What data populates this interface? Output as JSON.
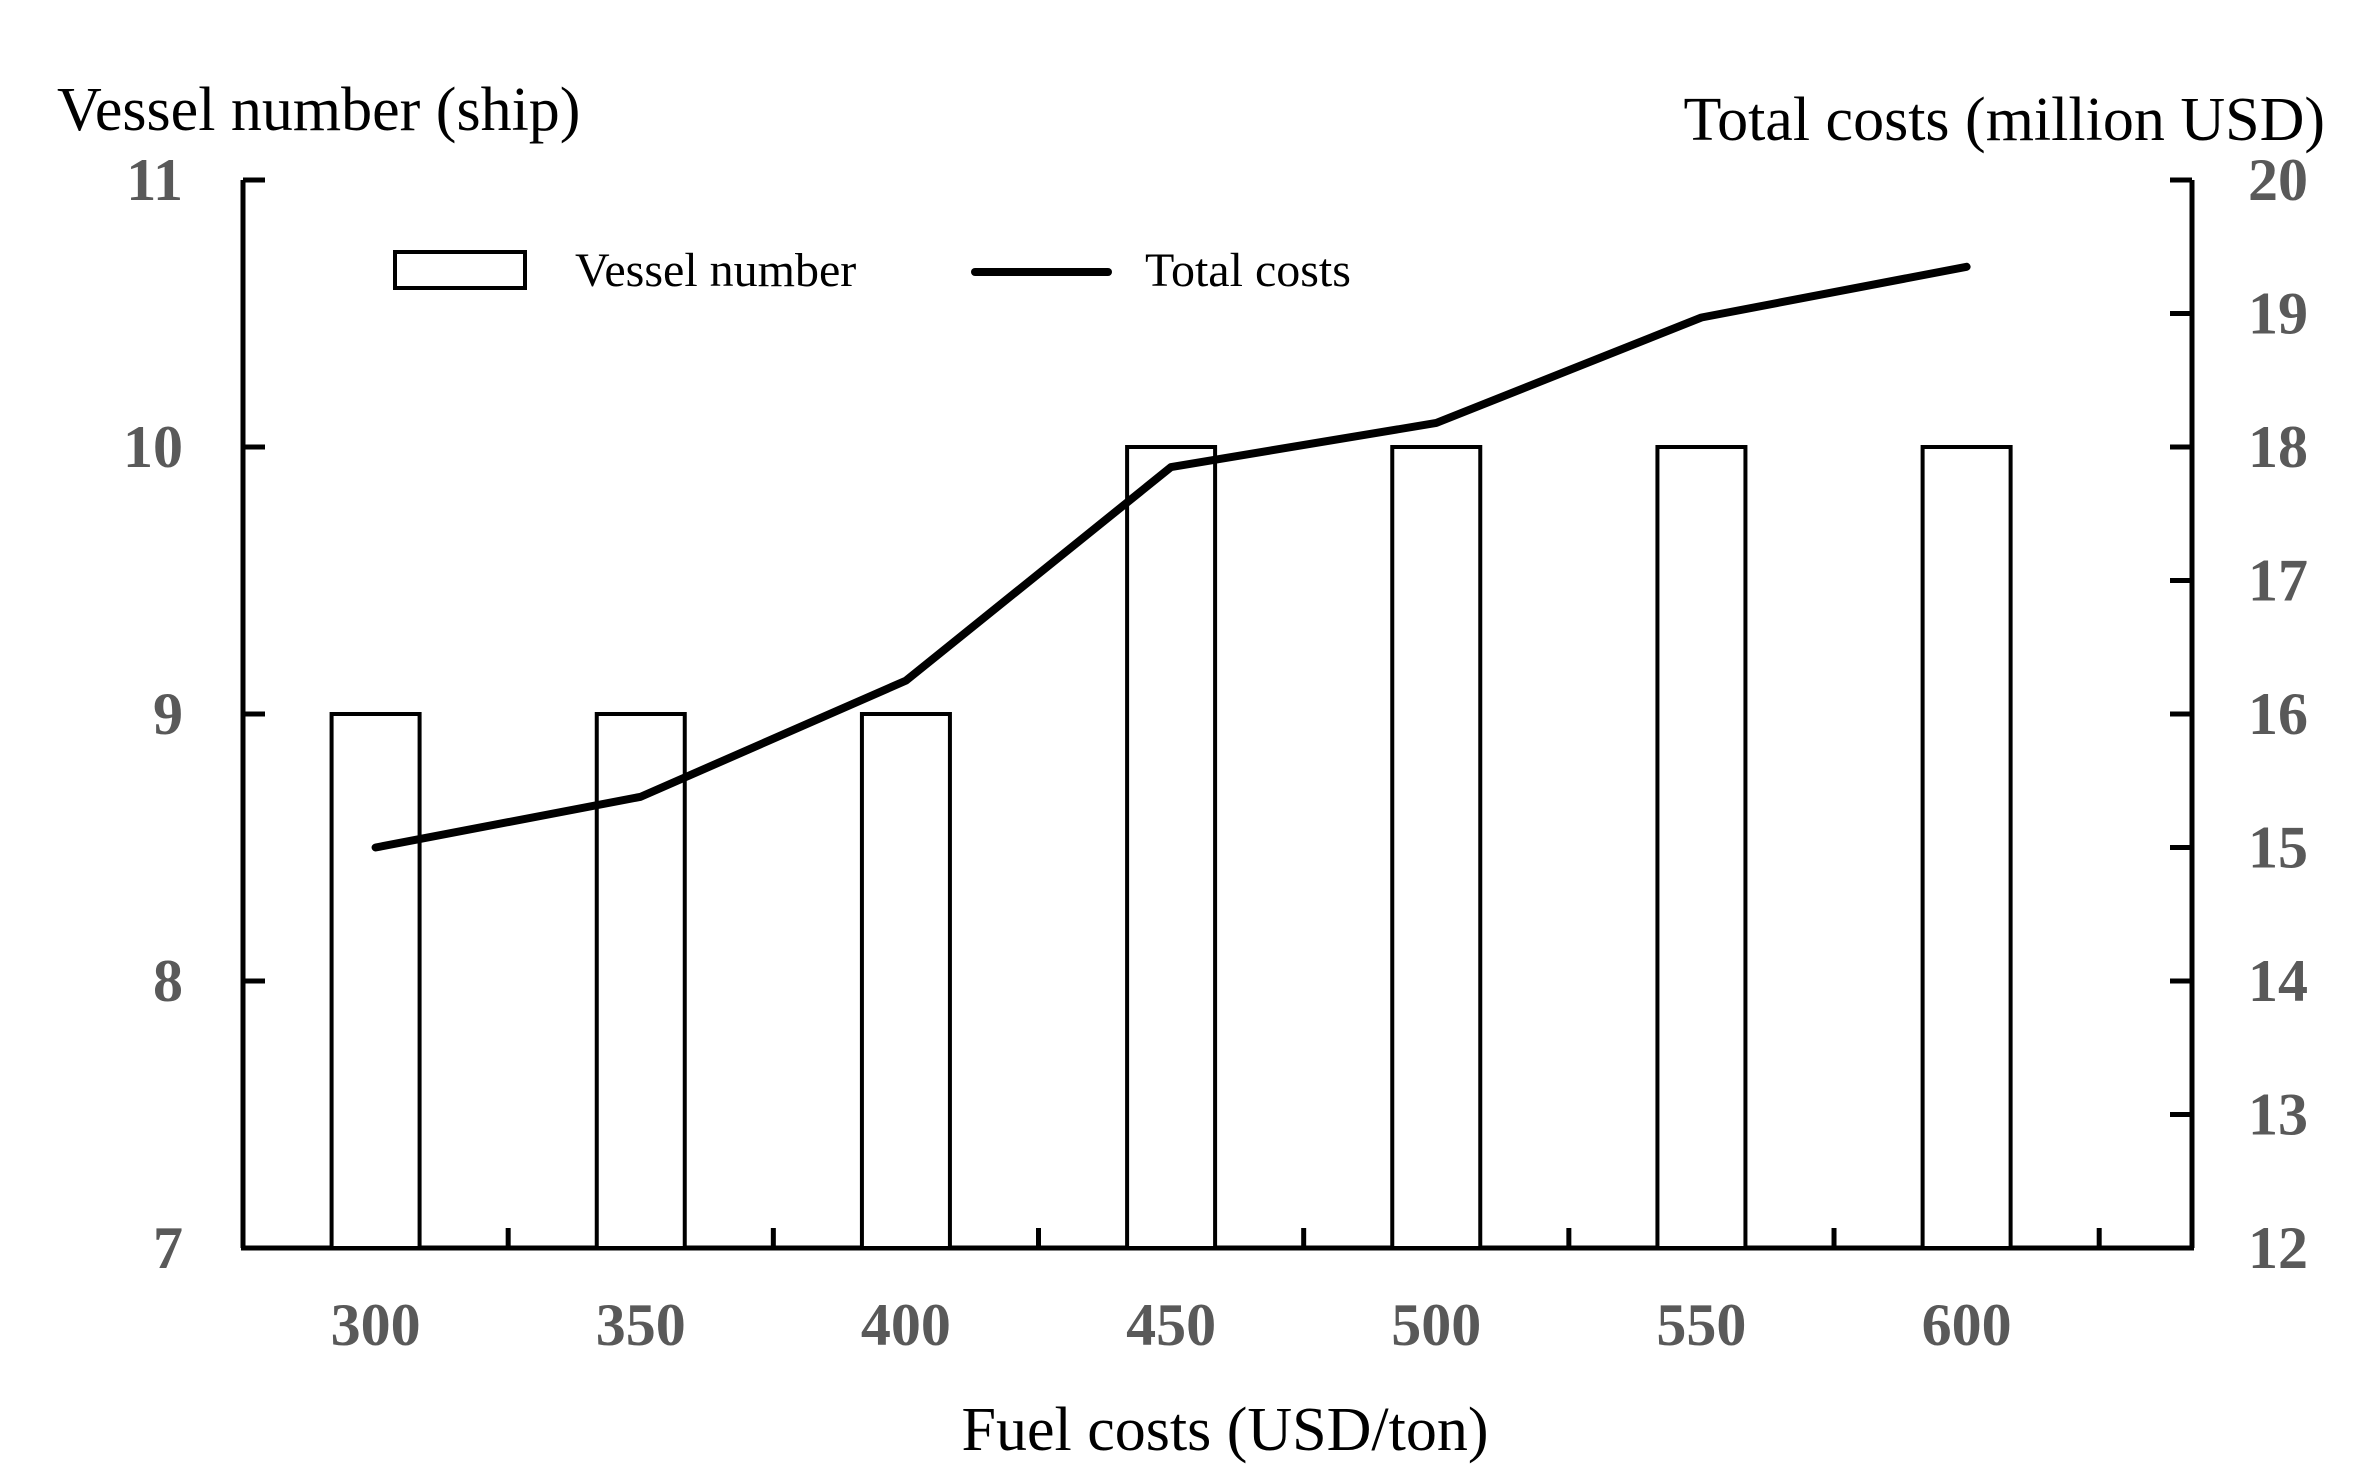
{
  "chart_data": {
    "type": "bar+line",
    "title": "",
    "xlabel": "Fuel costs (USD/ton)",
    "ylabel_left": "Vessel number (ship)",
    "ylabel_right": "Total costs (million USD)",
    "categories": [
      "300",
      "350",
      "400",
      "450",
      "500",
      "550",
      "600"
    ],
    "ylim_left": [
      7,
      11
    ],
    "yticks_left": [
      "7",
      "8",
      "9",
      "10",
      "11"
    ],
    "ylim_right": [
      12,
      20
    ],
    "yticks_right": [
      "12",
      "13",
      "14",
      "15",
      "16",
      "17",
      "18",
      "19",
      "20"
    ],
    "series": [
      {
        "name": "Vessel number",
        "type": "bar",
        "axis": "left",
        "values": [
          9,
          9,
          9,
          10,
          10,
          10,
          10
        ]
      },
      {
        "name": "Total costs",
        "type": "line",
        "axis": "right",
        "values": [
          15.0,
          15.38,
          16.25,
          17.85,
          18.18,
          18.97,
          19.35
        ]
      }
    ],
    "legend": {
      "position": "top-left",
      "entries": [
        "Vessel number",
        "Total costs"
      ]
    },
    "grid": false
  }
}
